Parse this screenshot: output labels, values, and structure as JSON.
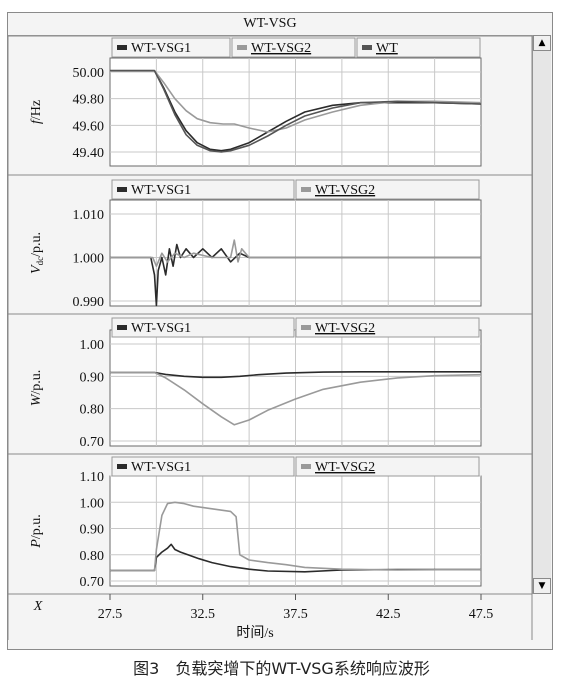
{
  "window": {
    "title": "WT-VSG",
    "x_row_label": "X",
    "scroll_up_icon": "arrow-up",
    "scroll_down_icon": "arrow-down"
  },
  "caption": "图3　负载突增下的WT-VSG系统响应波形",
  "colors": {
    "wt_vsg1": "#2b2b2b",
    "wt_vsg2": "#9a9a9a",
    "wt": "#555555",
    "panel_bg": "#ffffff",
    "grid": "#c8c8c8",
    "frame": "#8a8a8a"
  },
  "chart_data": [
    {
      "type": "line",
      "ylabel": "f/Hz",
      "yticks": [
        "50.00",
        "49.80",
        "49.60",
        "49.40"
      ],
      "ylim": [
        49.3,
        50.05
      ],
      "xlim": [
        27.5,
        47.5
      ],
      "grid": true,
      "legend_position": "top",
      "legend": [
        "WT-VSG1",
        "WT-VSG2",
        "WT"
      ],
      "series": [
        {
          "name": "WT-VSG1",
          "x": [
            27.5,
            29.9,
            30.4,
            31.0,
            31.6,
            32.2,
            32.9,
            33.5,
            34.0,
            35.0,
            36.0,
            37.0,
            38.0,
            39.5,
            41.0,
            43.0,
            45.0,
            47.5
          ],
          "y": [
            50.01,
            50.01,
            49.88,
            49.7,
            49.56,
            49.47,
            49.42,
            49.41,
            49.42,
            49.47,
            49.55,
            49.63,
            49.7,
            49.75,
            49.77,
            49.77,
            49.77,
            49.76
          ]
        },
        {
          "name": "WT-VSG2",
          "x": [
            27.5,
            29.9,
            30.4,
            31.0,
            31.6,
            32.2,
            32.9,
            33.6,
            34.2,
            35.0,
            36.0,
            37.0,
            38.0,
            39.5,
            41.0,
            43.0,
            45.0,
            47.5
          ],
          "y": [
            50.01,
            50.01,
            49.92,
            49.8,
            49.71,
            49.65,
            49.62,
            49.61,
            49.61,
            49.58,
            49.55,
            49.58,
            49.64,
            49.7,
            49.75,
            49.78,
            49.78,
            49.77
          ]
        },
        {
          "name": "WT",
          "x": [
            27.5,
            29.9,
            30.4,
            31.0,
            31.6,
            32.2,
            32.9,
            33.5,
            34.0,
            35.0,
            36.0,
            37.0,
            38.0,
            39.5,
            41.0,
            43.0,
            45.0,
            47.5
          ],
          "y": [
            50.01,
            50.01,
            49.87,
            49.68,
            49.53,
            49.45,
            49.41,
            49.4,
            49.41,
            49.45,
            49.52,
            49.6,
            49.67,
            49.73,
            49.77,
            49.78,
            49.77,
            49.76
          ]
        }
      ]
    },
    {
      "type": "line",
      "ylabel": "Vdc/p.u.",
      "ylabel_main": "V",
      "ylabel_sub": "dc",
      "ylabel_rest": "/p.u.",
      "yticks": [
        "1.010",
        "1.000",
        "0.990"
      ],
      "ylim": [
        0.985,
        1.018
      ],
      "xlim": [
        27.5,
        47.5
      ],
      "grid": true,
      "legend_position": "top",
      "legend": [
        "WT-VSG1",
        "WT-VSG2"
      ],
      "series": [
        {
          "name": "WT-VSG1",
          "x": [
            27.5,
            29.7,
            29.9,
            30.0,
            30.1,
            30.3,
            30.5,
            30.7,
            30.9,
            31.1,
            31.3,
            31.6,
            32.0,
            32.5,
            33.0,
            33.5,
            34.0,
            34.5,
            35.0,
            40.0,
            47.5
          ],
          "y": [
            1.0,
            1.0,
            0.996,
            0.989,
            0.997,
            1.0,
            0.996,
            1.002,
            0.998,
            1.003,
            1.0,
            1.002,
            1.0,
            1.002,
            1.0,
            1.002,
            0.999,
            1.001,
            1.0,
            1.0,
            1.0
          ]
        },
        {
          "name": "WT-VSG2",
          "x": [
            27.5,
            29.8,
            30.0,
            30.3,
            30.6,
            31.0,
            31.5,
            32.0,
            33.0,
            34.0,
            34.2,
            34.4,
            34.6,
            35.0,
            40.0,
            47.5
          ],
          "y": [
            1.0,
            1.0,
            0.998,
            1.001,
            0.999,
            1.001,
            1.0,
            1.001,
            1.0,
            1.0,
            1.004,
            0.999,
            1.002,
            1.0,
            1.0,
            1.0
          ]
        }
      ]
    },
    {
      "type": "line",
      "ylabel": "W/p.u.",
      "yticks": [
        "1.00",
        "0.90",
        "0.80",
        "0.70"
      ],
      "ylim": [
        0.7,
        1.0
      ],
      "xlim": [
        27.5,
        47.5
      ],
      "grid": true,
      "legend_position": "top",
      "legend": [
        "WT-VSG1",
        "WT-VSG2"
      ],
      "series": [
        {
          "name": "WT-VSG1",
          "x": [
            27.5,
            29.9,
            30.5,
            31.5,
            32.5,
            33.5,
            34.5,
            35.5,
            37.0,
            39.0,
            41.0,
            44.0,
            47.5
          ],
          "y": [
            0.912,
            0.912,
            0.906,
            0.9,
            0.897,
            0.897,
            0.9,
            0.905,
            0.91,
            0.913,
            0.914,
            0.914,
            0.914
          ]
        },
        {
          "name": "WT-VSG2",
          "x": [
            27.5,
            29.9,
            30.5,
            31.5,
            32.5,
            33.5,
            34.2,
            35.0,
            36.0,
            37.5,
            39.0,
            41.0,
            43.0,
            45.0,
            47.5
          ],
          "y": [
            0.912,
            0.912,
            0.895,
            0.858,
            0.815,
            0.775,
            0.75,
            0.765,
            0.795,
            0.83,
            0.86,
            0.882,
            0.895,
            0.902,
            0.905
          ]
        }
      ]
    },
    {
      "type": "line",
      "ylabel": "P/p.u.",
      "yticks": [
        "1.10",
        "1.00",
        "0.90",
        "0.80",
        "0.70"
      ],
      "ylim": [
        0.7,
        1.12
      ],
      "xlim": [
        27.5,
        47.5
      ],
      "grid": true,
      "legend_position": "top",
      "legend": [
        "WT-VSG1",
        "WT-VSG2"
      ],
      "series": [
        {
          "name": "WT-VSG1",
          "x": [
            27.5,
            29.9,
            30.0,
            30.3,
            30.6,
            30.8,
            31.0,
            31.3,
            31.7,
            32.3,
            33.0,
            34.0,
            35.0,
            36.0,
            38.0,
            40.0,
            43.0,
            47.5
          ],
          "y": [
            0.74,
            0.74,
            0.79,
            0.81,
            0.825,
            0.84,
            0.82,
            0.81,
            0.8,
            0.785,
            0.77,
            0.755,
            0.745,
            0.738,
            0.735,
            0.742,
            0.744,
            0.744
          ]
        },
        {
          "name": "WT-VSG2",
          "x": [
            27.5,
            29.9,
            30.0,
            30.3,
            30.6,
            31.0,
            31.5,
            32.0,
            33.0,
            34.0,
            34.3,
            34.5,
            35.0,
            36.0,
            37.0,
            38.0,
            40.0,
            43.0,
            47.5
          ],
          "y": [
            0.74,
            0.74,
            0.82,
            0.95,
            0.995,
            1.0,
            0.995,
            0.985,
            0.975,
            0.965,
            0.945,
            0.8,
            0.78,
            0.77,
            0.762,
            0.752,
            0.745,
            0.742,
            0.744
          ]
        }
      ]
    }
  ],
  "x_axis": {
    "ticks": [
      "27.5",
      "32.5",
      "37.5",
      "42.5",
      "47.5"
    ],
    "label": "时间/s"
  }
}
